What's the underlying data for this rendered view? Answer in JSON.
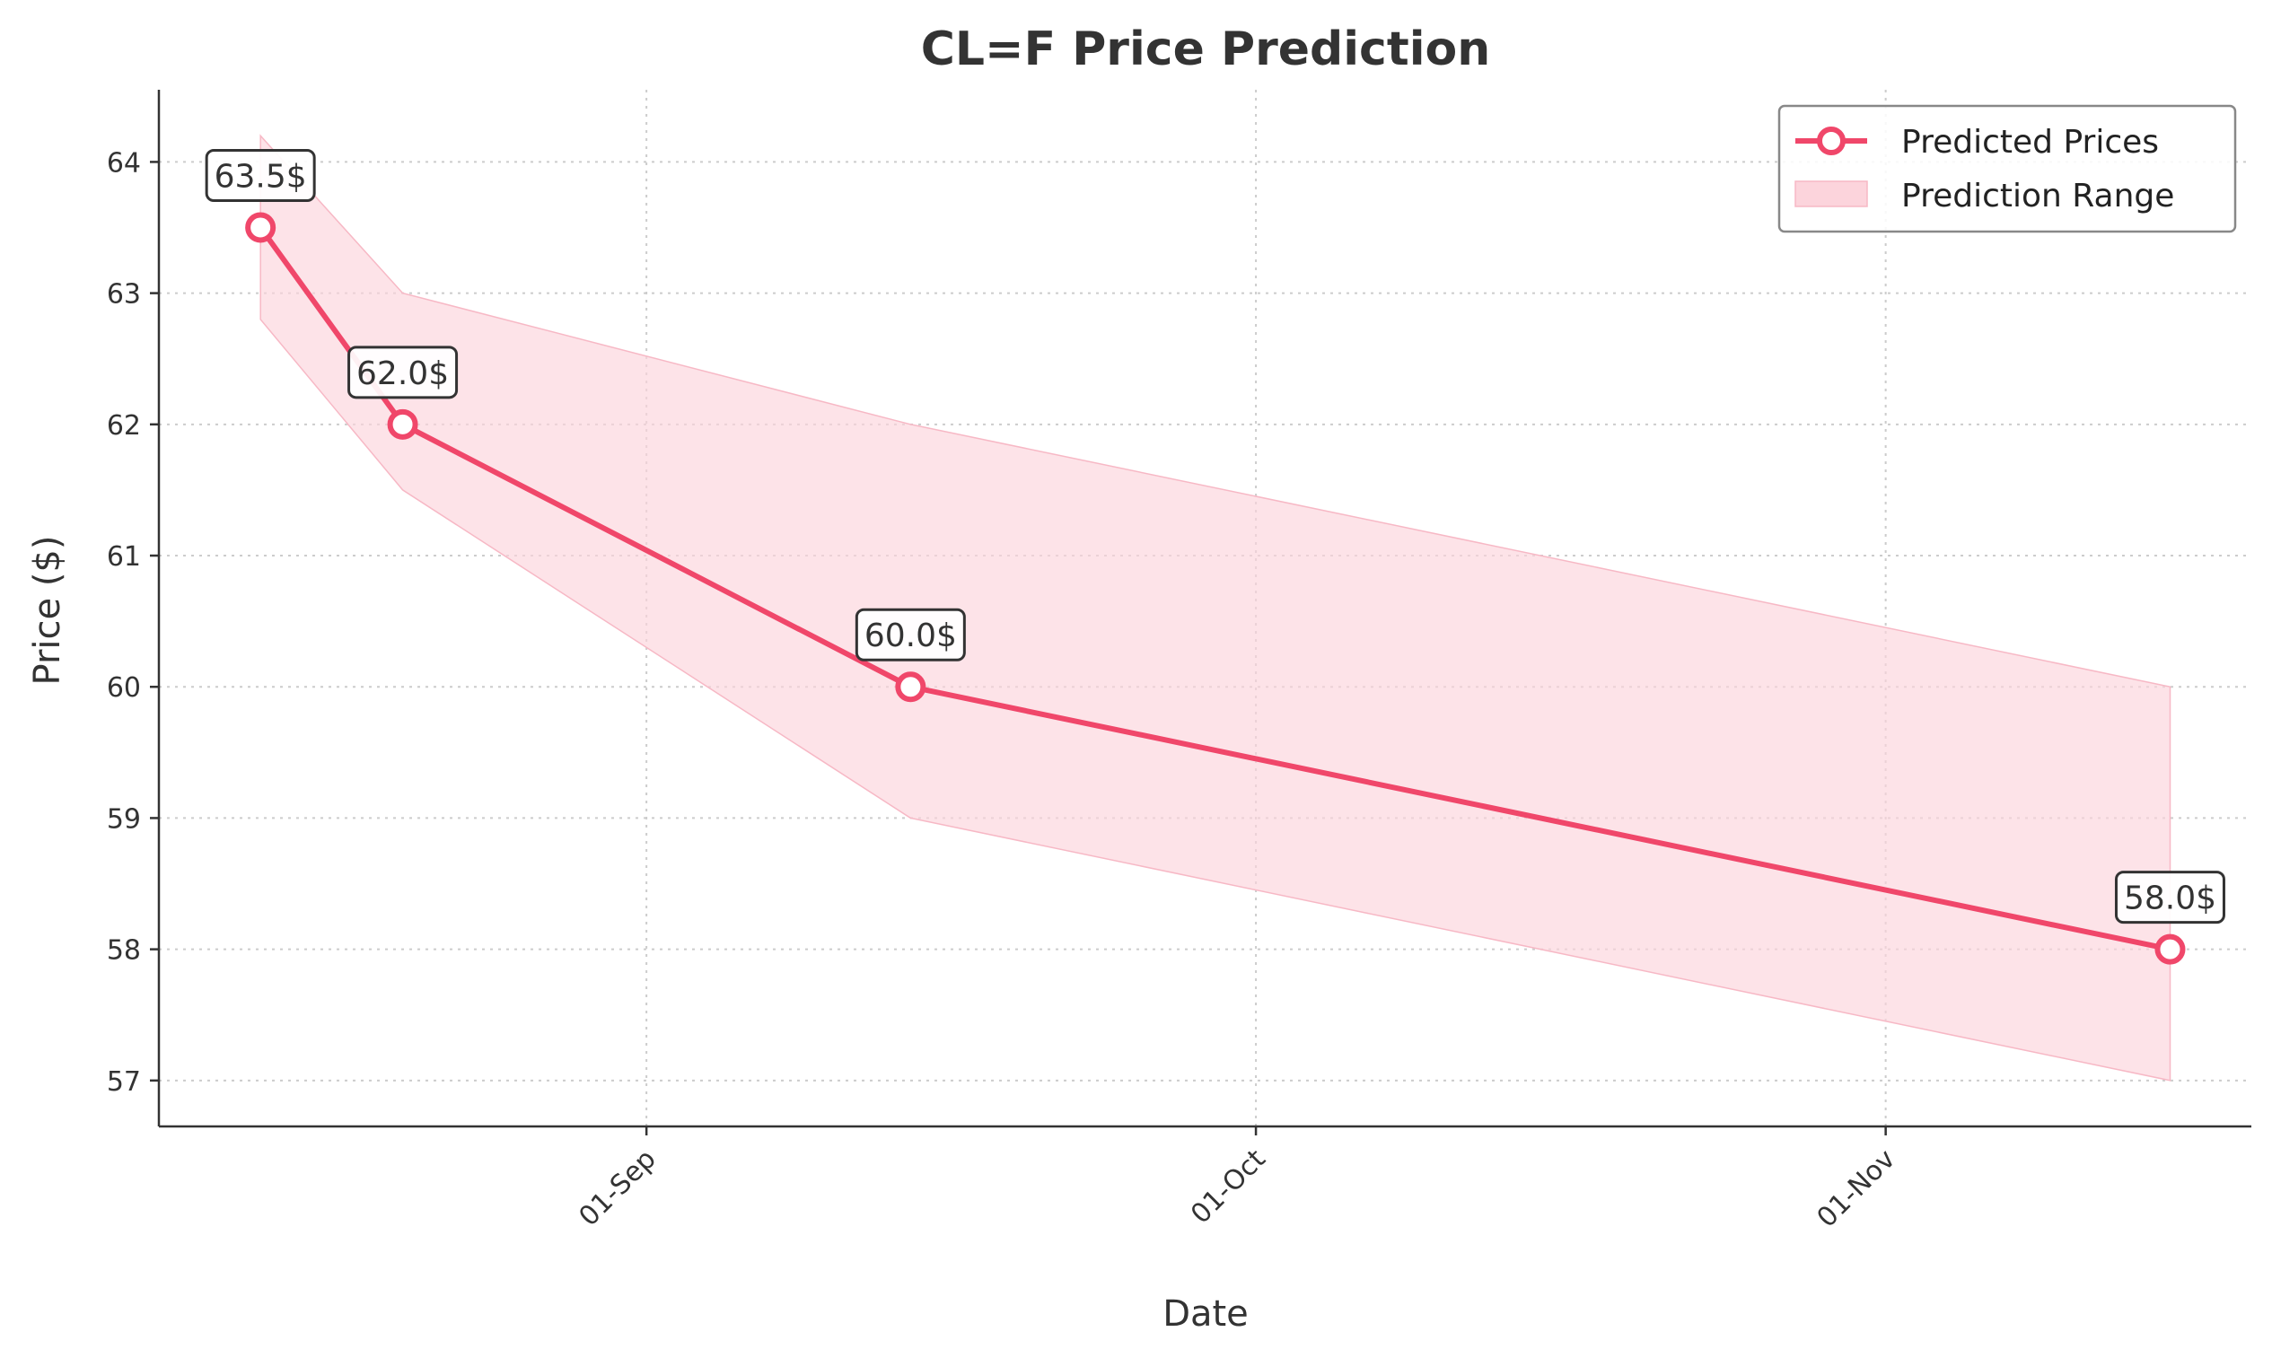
{
  "chart_data": {
    "type": "line",
    "title": "CL=F Price Prediction",
    "xlabel": "Date",
    "ylabel": "Price ($)",
    "x": [
      "2024-08-13",
      "2024-08-20",
      "2024-09-14",
      "2024-11-15"
    ],
    "series": [
      {
        "name": "Predicted Prices",
        "values": [
          63.5,
          62.0,
          60.0,
          58.0
        ],
        "color": "#f0476a"
      }
    ],
    "range": {
      "name": "Prediction Range",
      "lower": [
        62.8,
        61.5,
        59.0,
        57.0
      ],
      "upper": [
        64.2,
        63.0,
        62.0,
        60.0
      ],
      "color": "#fcd4dc"
    },
    "data_labels": [
      "63.5$",
      "62.0$",
      "60.0$",
      "58.0$"
    ],
    "xticks": [
      {
        "date": "2024-09-01",
        "label": "01-Sep"
      },
      {
        "date": "2024-10-01",
        "label": "01-Oct"
      },
      {
        "date": "2024-11-01",
        "label": "01-Nov"
      }
    ],
    "yticks": [
      57,
      58,
      59,
      60,
      61,
      62,
      63,
      64
    ],
    "xlim": [
      "2024-08-08",
      "2024-11-19"
    ],
    "ylim": [
      56.65,
      64.55
    ],
    "grid": true,
    "legend_position": "top-right"
  }
}
